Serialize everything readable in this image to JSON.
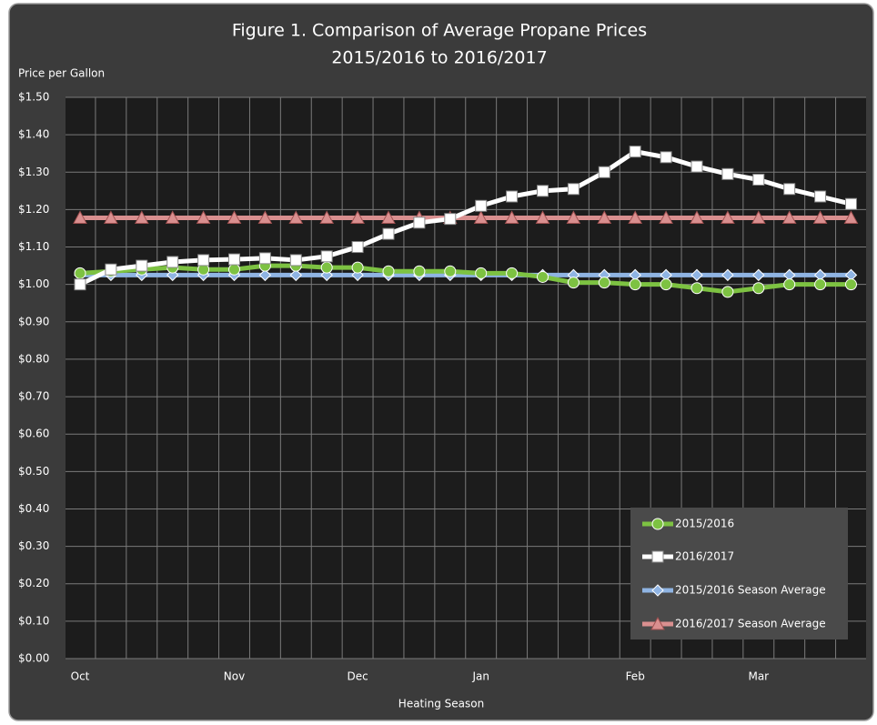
{
  "chart_data": {
    "type": "line",
    "title": [
      "Figure 1. Comparison of Average Propane Prices",
      "2015/2016 to 2016/2017"
    ],
    "y_label": "Price per Gallon",
    "x_label": "Heating Season",
    "categories": [
      "Oct",
      null,
      null,
      null,
      null,
      "Nov",
      null,
      null,
      null,
      "Dec",
      null,
      null,
      null,
      "Jan",
      null,
      null,
      null,
      null,
      "Feb",
      null,
      null,
      null,
      "Mar",
      null,
      null,
      null
    ],
    "series": [
      {
        "name": "2015/2016",
        "color": "#7dc242",
        "marker": "circle",
        "values": [
          1.03,
          1.035,
          1.04,
          1.045,
          1.04,
          1.04,
          1.05,
          1.05,
          1.045,
          1.045,
          1.035,
          1.035,
          1.035,
          1.03,
          1.03,
          1.02,
          1.005,
          1.005,
          1.0,
          1.0,
          0.99,
          0.98,
          0.99,
          1.0,
          1.0,
          1.0
        ]
      },
      {
        "name": "2016/2017",
        "color": "#ffffff",
        "marker": "square",
        "values": [
          1.0,
          1.04,
          1.05,
          1.06,
          1.065,
          1.067,
          1.07,
          1.065,
          1.075,
          1.1,
          1.135,
          1.165,
          1.175,
          1.21,
          1.235,
          1.25,
          1.255,
          1.3,
          1.355,
          1.34,
          1.315,
          1.295,
          1.28,
          1.255,
          1.235,
          1.215
        ]
      },
      {
        "name": "2015/2016 Season Average",
        "color": "#8fb4e3",
        "marker": "diamond",
        "values": [
          1.025,
          1.025,
          1.025,
          1.025,
          1.025,
          1.025,
          1.025,
          1.025,
          1.025,
          1.025,
          1.025,
          1.025,
          1.025,
          1.025,
          1.025,
          1.025,
          1.025,
          1.025,
          1.025,
          1.025,
          1.025,
          1.025,
          1.025,
          1.025,
          1.025,
          1.025
        ]
      },
      {
        "name": "2016/2017 Season Average",
        "color": "#d98f8f",
        "marker": "triangle",
        "values": [
          1.178,
          1.178,
          1.178,
          1.178,
          1.178,
          1.178,
          1.178,
          1.178,
          1.178,
          1.178,
          1.178,
          1.178,
          1.178,
          1.178,
          1.178,
          1.178,
          1.178,
          1.178,
          1.178,
          1.178,
          1.178,
          1.178,
          1.178,
          1.178,
          1.178,
          1.178
        ]
      }
    ],
    "ylim": [
      0,
      1.5
    ],
    "yticks": [
      {
        "value": 0,
        "label": "$0.00"
      },
      {
        "value": 0.1,
        "label": "$0.10"
      },
      {
        "value": 0.2,
        "label": "$0.20"
      },
      {
        "value": 0.3,
        "label": "$0.30"
      },
      {
        "value": 0.4,
        "label": "$0.40"
      },
      {
        "value": 0.5,
        "label": "$0.50"
      },
      {
        "value": 0.6,
        "label": "$0.60"
      },
      {
        "value": 0.7,
        "label": "$0.70"
      },
      {
        "value": 0.8,
        "label": "$0.80"
      },
      {
        "value": 0.9,
        "label": "$0.90"
      },
      {
        "value": 1.0,
        "label": "$1.00"
      },
      {
        "value": 1.1,
        "label": "$1.10"
      },
      {
        "value": 1.2,
        "label": "$1.20"
      },
      {
        "value": 1.3,
        "label": "$1.30"
      },
      {
        "value": 1.4,
        "label": "$1.40"
      },
      {
        "value": 1.5,
        "label": "$1.50"
      }
    ],
    "grid": true,
    "legend": "lower right"
  }
}
